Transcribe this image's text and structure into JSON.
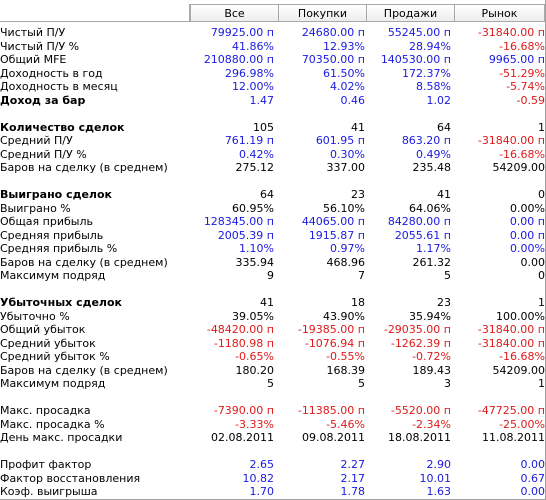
{
  "headers": [
    "",
    "Все",
    "Покупки",
    "Продажи",
    "Рынок"
  ],
  "rows": [
    {
      "label": "Чистый П/У",
      "bold": false,
      "values": [
        [
          "79925.00 п",
          "pos"
        ],
        [
          "24680.00 п",
          "pos"
        ],
        [
          "55245.00 п",
          "pos"
        ],
        [
          "-31840.00 п",
          "neg"
        ]
      ]
    },
    {
      "label": "Чистый П/У %",
      "bold": false,
      "values": [
        [
          "41.86%",
          "pos"
        ],
        [
          "12.93%",
          "pos"
        ],
        [
          "28.94%",
          "pos"
        ],
        [
          "-16.68%",
          "neg"
        ]
      ]
    },
    {
      "label": "Общий MFE",
      "bold": false,
      "values": [
        [
          "210880.00 п",
          "pos"
        ],
        [
          "70350.00 п",
          "pos"
        ],
        [
          "140530.00 п",
          "pos"
        ],
        [
          "9965.00 п",
          "pos"
        ]
      ]
    },
    {
      "label": "Доходность в год",
      "bold": false,
      "values": [
        [
          "296.98%",
          "pos"
        ],
        [
          "61.50%",
          "pos"
        ],
        [
          "172.37%",
          "pos"
        ],
        [
          "-51.29%",
          "neg"
        ]
      ]
    },
    {
      "label": "Доходность в месяц",
      "bold": false,
      "values": [
        [
          "12.00%",
          "pos"
        ],
        [
          "4.02%",
          "pos"
        ],
        [
          "8.58%",
          "pos"
        ],
        [
          "-5.74%",
          "neg"
        ]
      ]
    },
    {
      "label": "Доход за бар",
      "bold": true,
      "values": [
        [
          "1.47",
          "pos"
        ],
        [
          "0.46",
          "pos"
        ],
        [
          "1.02",
          "pos"
        ],
        [
          "-0.59",
          "neg"
        ]
      ]
    },
    {
      "spacer": true
    },
    {
      "label": "Количество сделок",
      "bold": true,
      "values": [
        [
          "105",
          "blk"
        ],
        [
          "41",
          "blk"
        ],
        [
          "64",
          "blk"
        ],
        [
          "1",
          "blk"
        ]
      ]
    },
    {
      "label": "Средний П/У",
      "bold": false,
      "values": [
        [
          "761.19 п",
          "pos"
        ],
        [
          "601.95 п",
          "pos"
        ],
        [
          "863.20 п",
          "pos"
        ],
        [
          "-31840.00 п",
          "neg"
        ]
      ]
    },
    {
      "label": "Средний П/У %",
      "bold": false,
      "values": [
        [
          "0.42%",
          "pos"
        ],
        [
          "0.30%",
          "pos"
        ],
        [
          "0.49%",
          "pos"
        ],
        [
          "-16.68%",
          "neg"
        ]
      ]
    },
    {
      "label": "Баров на сделку (в среднем)",
      "bold": false,
      "values": [
        [
          "275.12",
          "blk"
        ],
        [
          "337.00",
          "blk"
        ],
        [
          "235.48",
          "blk"
        ],
        [
          "54209.00",
          "blk"
        ]
      ]
    },
    {
      "spacer": true
    },
    {
      "label": "Выиграно сделок",
      "bold": true,
      "values": [
        [
          "64",
          "blk"
        ],
        [
          "23",
          "blk"
        ],
        [
          "41",
          "blk"
        ],
        [
          "0",
          "blk"
        ]
      ]
    },
    {
      "label": "Выиграно %",
      "bold": false,
      "values": [
        [
          "60.95%",
          "blk"
        ],
        [
          "56.10%",
          "blk"
        ],
        [
          "64.06%",
          "blk"
        ],
        [
          "0.00%",
          "blk"
        ]
      ]
    },
    {
      "label": "Общая прибыль",
      "bold": false,
      "values": [
        [
          "128345.00 п",
          "pos"
        ],
        [
          "44065.00 п",
          "pos"
        ],
        [
          "84280.00 п",
          "pos"
        ],
        [
          "0.00 п",
          "pos"
        ]
      ]
    },
    {
      "label": "Средняя прибыль",
      "bold": false,
      "values": [
        [
          "2005.39 п",
          "pos"
        ],
        [
          "1915.87 п",
          "pos"
        ],
        [
          "2055.61 п",
          "pos"
        ],
        [
          "0.00 п",
          "pos"
        ]
      ]
    },
    {
      "label": "Средняя прибыль %",
      "bold": false,
      "values": [
        [
          "1.10%",
          "pos"
        ],
        [
          "0.97%",
          "pos"
        ],
        [
          "1.17%",
          "pos"
        ],
        [
          "0.00%",
          "pos"
        ]
      ]
    },
    {
      "label": "Баров на сделку (в среднем)",
      "bold": false,
      "values": [
        [
          "335.94",
          "blk"
        ],
        [
          "468.96",
          "blk"
        ],
        [
          "261.32",
          "blk"
        ],
        [
          "0.00",
          "blk"
        ]
      ]
    },
    {
      "label": "Максимум подряд",
      "bold": false,
      "values": [
        [
          "9",
          "blk"
        ],
        [
          "7",
          "blk"
        ],
        [
          "5",
          "blk"
        ],
        [
          "0",
          "blk"
        ]
      ]
    },
    {
      "spacer": true
    },
    {
      "label": "Убыточных сделок",
      "bold": true,
      "values": [
        [
          "41",
          "blk"
        ],
        [
          "18",
          "blk"
        ],
        [
          "23",
          "blk"
        ],
        [
          "1",
          "blk"
        ]
      ]
    },
    {
      "label": "Убыточно %",
      "bold": false,
      "values": [
        [
          "39.05%",
          "blk"
        ],
        [
          "43.90%",
          "blk"
        ],
        [
          "35.94%",
          "blk"
        ],
        [
          "100.00%",
          "blk"
        ]
      ]
    },
    {
      "label": "Общий убыток",
      "bold": false,
      "values": [
        [
          "-48420.00 п",
          "neg"
        ],
        [
          "-19385.00 п",
          "neg"
        ],
        [
          "-29035.00 п",
          "neg"
        ],
        [
          "-31840.00 п",
          "neg"
        ]
      ]
    },
    {
      "label": "Средний убыток",
      "bold": false,
      "values": [
        [
          "-1180.98 п",
          "neg"
        ],
        [
          "-1076.94 п",
          "neg"
        ],
        [
          "-1262.39 п",
          "neg"
        ],
        [
          "-31840.00 п",
          "neg"
        ]
      ]
    },
    {
      "label": "Средний убыток %",
      "bold": false,
      "values": [
        [
          "-0.65%",
          "neg"
        ],
        [
          "-0.55%",
          "neg"
        ],
        [
          "-0.72%",
          "neg"
        ],
        [
          "-16.68%",
          "neg"
        ]
      ]
    },
    {
      "label": "Баров на сделку (в среднем)",
      "bold": false,
      "values": [
        [
          "180.20",
          "blk"
        ],
        [
          "168.39",
          "blk"
        ],
        [
          "189.43",
          "blk"
        ],
        [
          "54209.00",
          "blk"
        ]
      ]
    },
    {
      "label": "Максимум подряд",
      "bold": false,
      "values": [
        [
          "5",
          "blk"
        ],
        [
          "5",
          "blk"
        ],
        [
          "3",
          "blk"
        ],
        [
          "1",
          "blk"
        ]
      ]
    },
    {
      "spacer": true
    },
    {
      "label": "Макс. просадка",
      "bold": false,
      "values": [
        [
          "-7390.00 п",
          "neg"
        ],
        [
          "-11385.00 п",
          "neg"
        ],
        [
          "-5520.00 п",
          "neg"
        ],
        [
          "-47725.00 п",
          "neg"
        ]
      ]
    },
    {
      "label": "Макс. просадка %",
      "bold": false,
      "values": [
        [
          "-3.33%",
          "neg"
        ],
        [
          "-5.46%",
          "neg"
        ],
        [
          "-2.34%",
          "neg"
        ],
        [
          "-25.00%",
          "neg"
        ]
      ]
    },
    {
      "label": "День макс. просадки",
      "bold": false,
      "values": [
        [
          "02.08.2011",
          "blk"
        ],
        [
          "09.08.2011",
          "blk"
        ],
        [
          "18.08.2011",
          "blk"
        ],
        [
          "11.08.2011",
          "blk"
        ]
      ]
    },
    {
      "spacer": true
    },
    {
      "label": "Профит фактор",
      "bold": false,
      "values": [
        [
          "2.65",
          "pos"
        ],
        [
          "2.27",
          "pos"
        ],
        [
          "2.90",
          "pos"
        ],
        [
          "0.00",
          "pos"
        ]
      ]
    },
    {
      "label": "Фактор восстановления",
      "bold": false,
      "values": [
        [
          "10.82",
          "pos"
        ],
        [
          "2.17",
          "pos"
        ],
        [
          "10.01",
          "pos"
        ],
        [
          "0.67",
          "pos"
        ]
      ]
    },
    {
      "label": "Коэф. выигрыша",
      "bold": false,
      "values": [
        [
          "1.70",
          "pos"
        ],
        [
          "1.78",
          "pos"
        ],
        [
          "1.63",
          "pos"
        ],
        [
          "0.00",
          "pos"
        ]
      ]
    }
  ]
}
